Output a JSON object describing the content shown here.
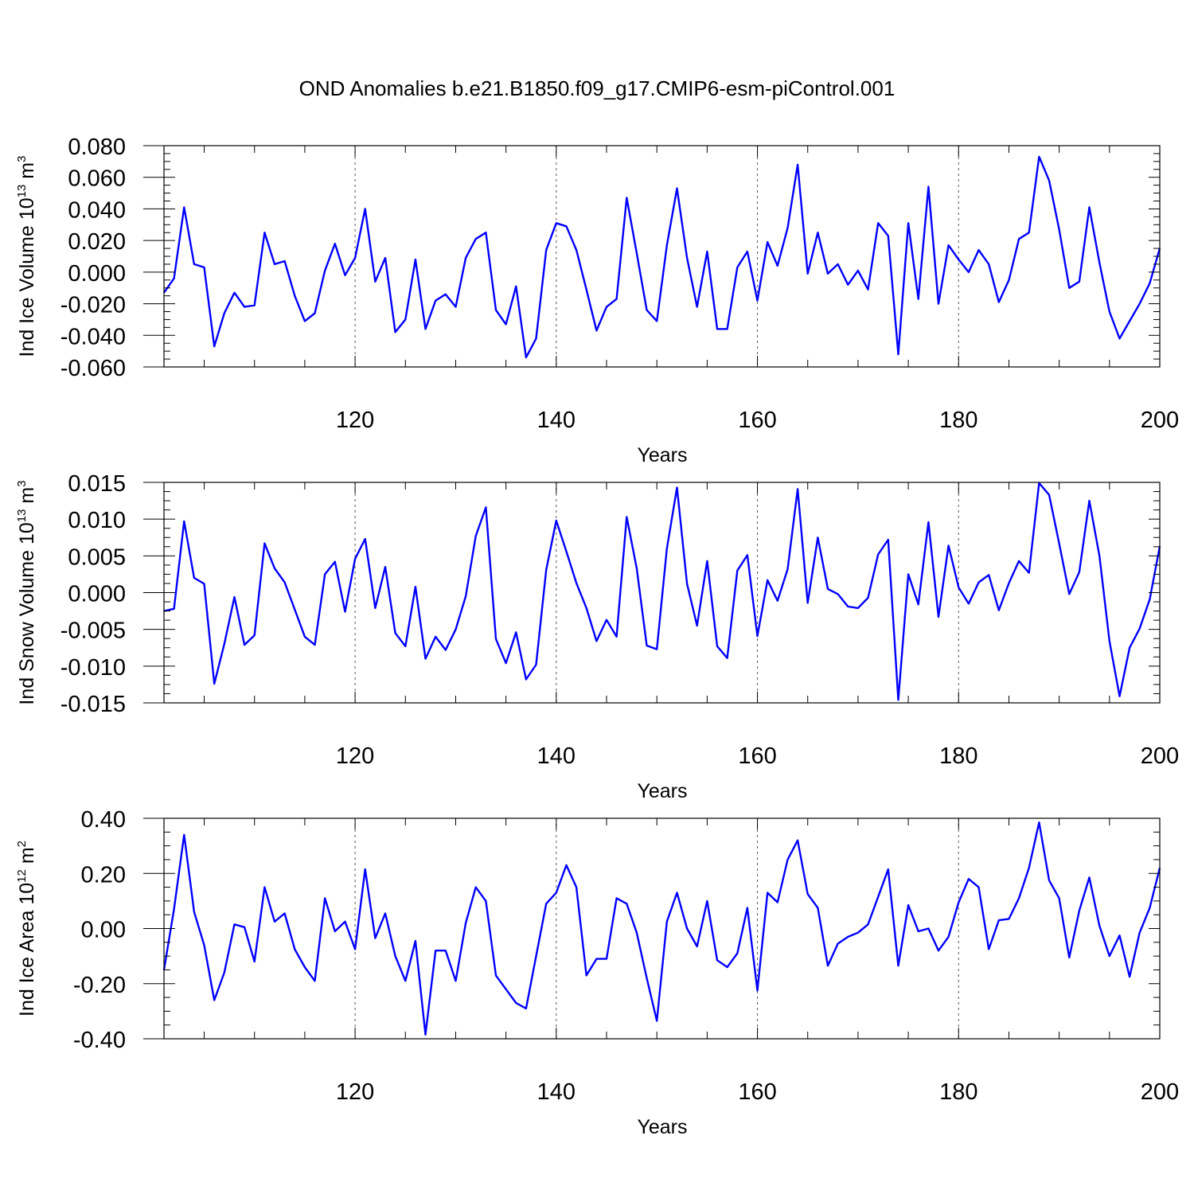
{
  "title": "OND Anomalies b.e21.B1850.f09_g17.CMIP6-esm-piControl.001",
  "colors": {
    "line": "#0000ff",
    "axis": "#000000",
    "grid": "#555555"
  },
  "chart_data": [
    {
      "type": "line",
      "title": "OND Anomalies b.e21.B1850.f09_g17.CMIP6-esm-piControl.001",
      "xlabel": "Years",
      "ylabel": {
        "main": "Ind Ice Volume 10",
        "sup": "13",
        "unit": " m",
        "unit_sup": "3"
      },
      "xlim": [
        101,
        200
      ],
      "ylim": [
        -0.06,
        0.08
      ],
      "grid_x": [
        120,
        140,
        160,
        180
      ],
      "x_ticks": [
        120,
        140,
        160,
        180,
        200
      ],
      "x_tick_labels": [
        "120",
        "140",
        "160",
        "180",
        "200"
      ],
      "y_ticks": [
        -0.06,
        -0.04,
        -0.02,
        0.0,
        0.02,
        0.04,
        0.06,
        0.08
      ],
      "y_tick_labels": [
        "-0.060",
        "-0.040",
        "-0.020",
        "0.000",
        "0.020",
        "0.040",
        "0.060",
        "0.080"
      ],
      "series": [
        {
          "name": "Ind Ice Volume",
          "x_start": 101,
          "x_step": 1,
          "values": [
            -0.013,
            -0.004,
            0.041,
            0.005,
            0.003,
            -0.047,
            -0.026,
            -0.013,
            -0.022,
            -0.021,
            0.025,
            0.005,
            0.007,
            -0.015,
            -0.031,
            -0.026,
            0.001,
            0.018,
            -0.002,
            0.009,
            0.04,
            -0.006,
            0.009,
            -0.038,
            -0.03,
            0.008,
            -0.036,
            -0.018,
            -0.014,
            -0.022,
            0.009,
            0.021,
            0.025,
            -0.024,
            -0.033,
            -0.009,
            -0.054,
            -0.042,
            0.014,
            0.031,
            0.029,
            0.014,
            -0.011,
            -0.037,
            -0.022,
            -0.017,
            0.047,
            0.012,
            -0.024,
            -0.031,
            0.017,
            0.053,
            0.009,
            -0.022,
            0.013,
            -0.036,
            -0.036,
            0.003,
            0.013,
            -0.018,
            0.019,
            0.004,
            0.028,
            0.068,
            -0.001,
            0.025,
            -0.001,
            0.005,
            -0.008,
            0.001,
            -0.011,
            0.031,
            0.023,
            -0.052,
            0.031,
            -0.017,
            0.054,
            -0.02,
            0.017,
            0.008,
            0.0,
            0.014,
            0.005,
            -0.019,
            -0.005,
            0.021,
            0.025,
            0.073,
            0.058,
            0.027,
            -0.01,
            -0.006,
            0.041,
            0.006,
            -0.025,
            -0.042,
            -0.031,
            -0.02,
            -0.007,
            0.015
          ]
        }
      ]
    },
    {
      "type": "line",
      "xlabel": "Years",
      "ylabel": {
        "main": "Ind Snow Volume 10",
        "sup": "13",
        "unit": " m",
        "unit_sup": "3"
      },
      "xlim": [
        101,
        200
      ],
      "ylim": [
        -0.015,
        0.015
      ],
      "grid_x": [
        120,
        140,
        160,
        180
      ],
      "x_ticks": [
        120,
        140,
        160,
        180,
        200
      ],
      "x_tick_labels": [
        "120",
        "140",
        "160",
        "180",
        "200"
      ],
      "y_ticks": [
        -0.015,
        -0.01,
        -0.005,
        0.0,
        0.005,
        0.01,
        0.015
      ],
      "y_tick_labels": [
        "-0.015",
        "-0.010",
        "-0.005",
        "0.000",
        "0.005",
        "0.010",
        "0.015"
      ],
      "series": [
        {
          "name": "Ind Snow Volume",
          "x_start": 101,
          "x_step": 1,
          "values": [
            -0.0025,
            -0.0022,
            0.0097,
            0.002,
            0.0012,
            -0.0124,
            -0.007,
            -0.0006,
            -0.0071,
            -0.0058,
            0.0067,
            0.0033,
            0.0014,
            -0.0023,
            -0.006,
            -0.0071,
            0.0025,
            0.0042,
            -0.0026,
            0.0046,
            0.0073,
            -0.0021,
            0.0035,
            -0.0055,
            -0.0073,
            0.0008,
            -0.009,
            -0.006,
            -0.0078,
            -0.005,
            -0.0005,
            0.0077,
            0.0116,
            -0.0063,
            -0.0096,
            -0.0054,
            -0.0118,
            -0.0098,
            0.0031,
            0.0098,
            0.0056,
            0.0013,
            -0.0021,
            -0.0066,
            -0.0037,
            -0.006,
            0.0103,
            0.0033,
            -0.0072,
            -0.0077,
            0.006,
            0.0143,
            0.0012,
            -0.0045,
            0.0043,
            -0.0073,
            -0.0089,
            0.003,
            0.0051,
            -0.0059,
            0.0017,
            -0.0011,
            0.0032,
            0.0141,
            -0.0014,
            0.0075,
            0.0005,
            -0.0002,
            -0.0019,
            -0.0021,
            -0.0007,
            0.0052,
            0.0072,
            -0.0146,
            0.0025,
            -0.0016,
            0.0096,
            -0.0033,
            0.0064,
            0.0007,
            -0.0015,
            0.0014,
            0.0024,
            -0.0024,
            0.0013,
            0.0043,
            0.0027,
            0.0149,
            0.0133,
            0.0067,
            -0.0002,
            0.0028,
            0.0125,
            0.005,
            -0.0066,
            -0.0141,
            -0.0075,
            -0.0049,
            -0.0009,
            0.0063
          ]
        }
      ]
    },
    {
      "type": "line",
      "xlabel": "Years",
      "ylabel": {
        "main": "Ind Ice Area 10",
        "sup": "12",
        "unit": " m",
        "unit_sup": "2"
      },
      "xlim": [
        101,
        200
      ],
      "ylim": [
        -0.4,
        0.4
      ],
      "grid_x": [
        120,
        140,
        160,
        180
      ],
      "x_ticks": [
        120,
        140,
        160,
        180,
        200
      ],
      "x_tick_labels": [
        "120",
        "140",
        "160",
        "180",
        "200"
      ],
      "y_ticks": [
        -0.4,
        -0.2,
        0.0,
        0.2,
        0.4
      ],
      "y_tick_labels": [
        "-0.40",
        "-0.20",
        "0.00",
        "0.20",
        "0.40"
      ],
      "series": [
        {
          "name": "Ind Ice Area",
          "x_start": 101,
          "x_step": 1,
          "values": [
            -0.15,
            0.07,
            0.34,
            0.06,
            -0.06,
            -0.26,
            -0.16,
            0.015,
            0.005,
            -0.12,
            0.15,
            0.025,
            0.055,
            -0.075,
            -0.14,
            -0.19,
            0.11,
            -0.01,
            0.025,
            -0.075,
            0.215,
            -0.035,
            0.055,
            -0.1,
            -0.19,
            -0.045,
            -0.385,
            -0.08,
            -0.08,
            -0.19,
            0.02,
            0.15,
            0.1,
            -0.17,
            -0.22,
            -0.27,
            -0.29,
            -0.1,
            0.09,
            0.13,
            0.23,
            0.15,
            -0.17,
            -0.11,
            -0.11,
            0.11,
            0.09,
            -0.015,
            -0.18,
            -0.335,
            0.025,
            0.13,
            0.0,
            -0.065,
            0.1,
            -0.115,
            -0.14,
            -0.09,
            0.075,
            -0.225,
            0.13,
            0.095,
            0.25,
            0.32,
            0.125,
            0.075,
            -0.135,
            -0.055,
            -0.03,
            -0.015,
            0.015,
            0.115,
            0.215,
            -0.135,
            0.085,
            -0.01,
            0.0,
            -0.08,
            -0.03,
            0.095,
            0.18,
            0.15,
            -0.075,
            0.03,
            0.035,
            0.11,
            0.22,
            0.385,
            0.175,
            0.11,
            -0.105,
            0.065,
            0.185,
            0.01,
            -0.1,
            -0.025,
            -0.175,
            -0.015,
            0.075,
            0.22
          ]
        }
      ]
    }
  ]
}
